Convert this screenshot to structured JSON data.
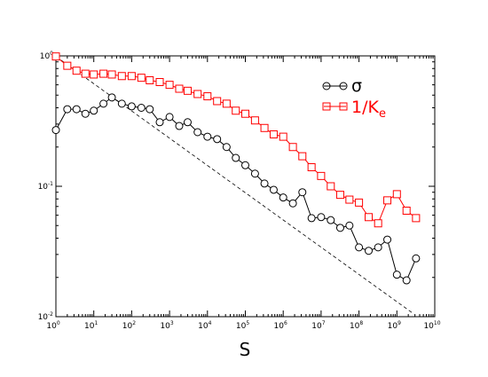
{
  "chart_data": {
    "type": "line",
    "title": "",
    "xlabel": "S",
    "ylabel": "",
    "x_scale": "log",
    "y_scale": "log",
    "xlim": [
      1,
      10000000000
    ],
    "ylim": [
      0.01,
      1
    ],
    "grid": false,
    "legend_placement": "top-right",
    "x_ticks": [
      {
        "base": "10",
        "exp": "0"
      },
      {
        "base": "10",
        "exp": "1"
      },
      {
        "base": "10",
        "exp": "2"
      },
      {
        "base": "10",
        "exp": "3"
      },
      {
        "base": "10",
        "exp": "4"
      },
      {
        "base": "10",
        "exp": "5"
      },
      {
        "base": "10",
        "exp": "6"
      },
      {
        "base": "10",
        "exp": "7"
      },
      {
        "base": "10",
        "exp": "8"
      },
      {
        "base": "10",
        "exp": "9"
      },
      {
        "base": "10",
        "exp": "10"
      }
    ],
    "y_ticks": [
      {
        "base": "10",
        "exp": "-2"
      },
      {
        "base": "10",
        "exp": "-1"
      },
      {
        "base": "10",
        "exp": "0"
      }
    ],
    "series": [
      {
        "name": "σ",
        "color": "#000000",
        "marker": "circle",
        "x": [
          1,
          2,
          3.5,
          6,
          10,
          18,
          30,
          55,
          100,
          180,
          300,
          550,
          1000,
          1800,
          3000,
          5500,
          10000,
          18000,
          32000,
          56000,
          100000,
          180000,
          320000,
          560000,
          1000000,
          1800000,
          3200000,
          5600000,
          10000000,
          18000000,
          32000000,
          56000000,
          100000000,
          180000000,
          320000000,
          560000000,
          1000000000,
          1800000000,
          3200000000
        ],
        "values": [
          0.27,
          0.39,
          0.39,
          0.36,
          0.38,
          0.43,
          0.48,
          0.43,
          0.41,
          0.4,
          0.39,
          0.31,
          0.34,
          0.29,
          0.31,
          0.26,
          0.24,
          0.23,
          0.2,
          0.165,
          0.145,
          0.125,
          0.105,
          0.094,
          0.082,
          0.074,
          0.09,
          0.057,
          0.058,
          0.055,
          0.048,
          0.05,
          0.034,
          0.032,
          0.034,
          0.039,
          0.021,
          0.019,
          0.028
        ]
      },
      {
        "name": "1/K",
        "name_subscript": "e",
        "color": "#ff0000",
        "marker": "square",
        "x": [
          1,
          2,
          3.5,
          6,
          10,
          18,
          30,
          55,
          100,
          180,
          300,
          550,
          1000,
          1800,
          3000,
          5500,
          10000,
          18000,
          32000,
          56000,
          100000,
          180000,
          320000,
          560000,
          1000000,
          1800000,
          3200000,
          5600000,
          10000000,
          18000000,
          32000000,
          56000000,
          100000000,
          180000000,
          320000000,
          560000000,
          1000000000,
          1800000000,
          3200000000
        ],
        "values": [
          0.99,
          0.84,
          0.77,
          0.73,
          0.72,
          0.73,
          0.72,
          0.7,
          0.7,
          0.68,
          0.65,
          0.63,
          0.6,
          0.56,
          0.54,
          0.51,
          0.49,
          0.45,
          0.43,
          0.38,
          0.36,
          0.32,
          0.28,
          0.25,
          0.24,
          0.2,
          0.17,
          0.14,
          0.12,
          0.1,
          0.086,
          0.079,
          0.075,
          0.058,
          0.052,
          0.078,
          0.087,
          0.065,
          0.057
        ]
      }
    ],
    "reference_line": {
      "style": "dashed",
      "x": [
        1,
        2800000000
      ],
      "values": [
        0.99,
        0.0105
      ]
    }
  }
}
